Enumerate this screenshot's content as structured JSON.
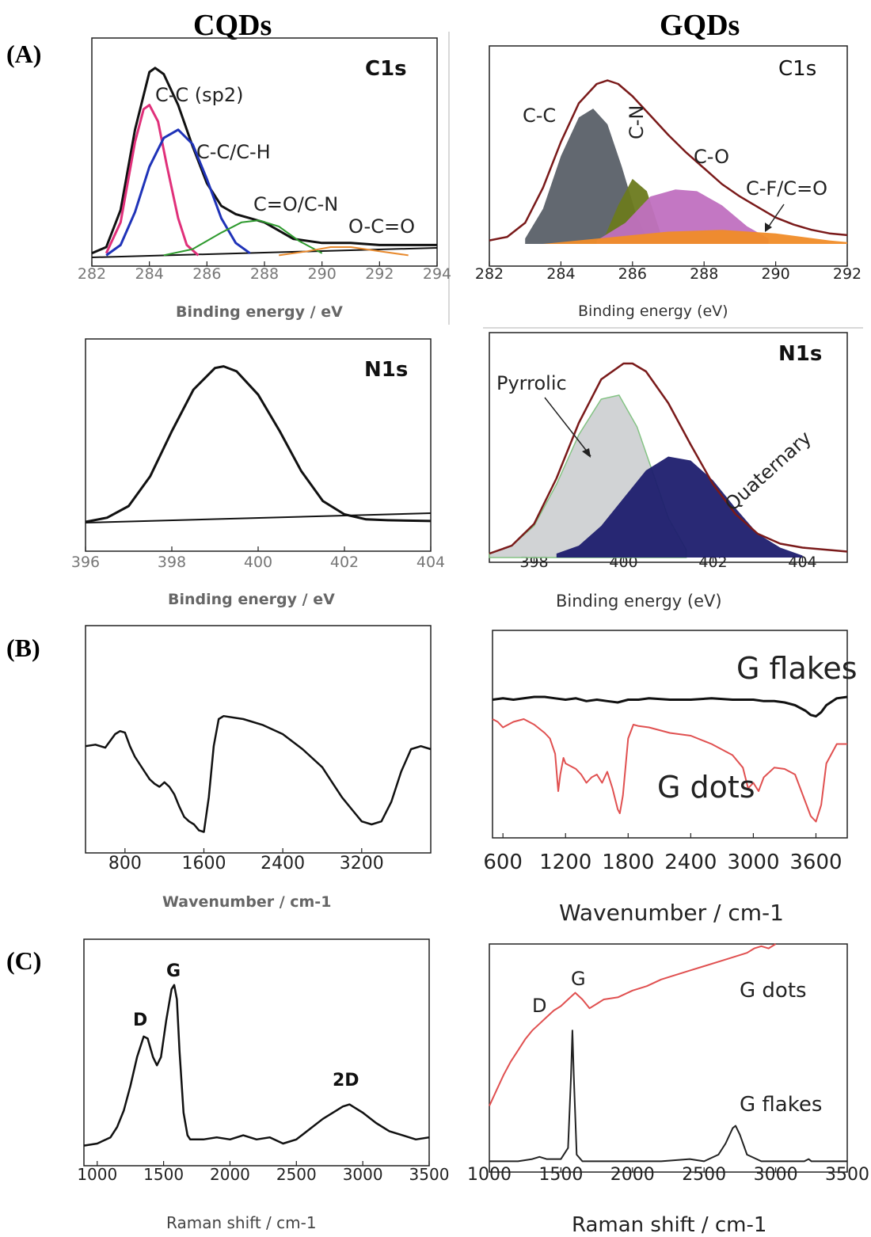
{
  "columns": {
    "left": "CQDs",
    "right": "GQDs"
  },
  "sections": {
    "a": "(A)",
    "b": "(B)",
    "c": "(C)"
  },
  "colors": {
    "black": "#111111",
    "magenta": "#e0307a",
    "blue": "#1f33b8",
    "green": "#2e9a2e",
    "orange": "#e88a2e",
    "darkred": "#7a1a1a",
    "gray_fill": "#5a6068",
    "olive_fill": "#6b7a1e",
    "pink_fill": "#c070c0",
    "orange_fill": "#f08c28",
    "light_fill": "#cfd1d3",
    "navy_fill": "#1e1e6e",
    "red_line": "#e05050"
  },
  "chart_data": [
    {
      "id": "cqd_c1s",
      "type": "line",
      "title": "C1s",
      "xlabel": "Binding energy / eV",
      "xlim": [
        282,
        294
      ],
      "ylim": [
        0,
        1
      ],
      "xticks": [
        282,
        284,
        286,
        288,
        290,
        292,
        294
      ],
      "annotations": [
        "C-C (sp2)",
        "C-C/C-H",
        "C=O/C-N",
        "O-C=O"
      ],
      "series": [
        {
          "name": "envelope",
          "x": [
            282.0,
            282.5,
            283.0,
            283.5,
            284.0,
            284.2,
            284.5,
            285.0,
            285.5,
            286.0,
            286.5,
            287.0,
            287.5,
            288.0,
            288.5,
            289.0,
            290.0,
            291.0,
            292.0,
            293.0,
            294.0
          ],
          "y": [
            0.02,
            0.05,
            0.23,
            0.62,
            0.9,
            0.92,
            0.89,
            0.74,
            0.54,
            0.36,
            0.25,
            0.21,
            0.19,
            0.17,
            0.13,
            0.09,
            0.07,
            0.07,
            0.06,
            0.06,
            0.06
          ]
        },
        {
          "name": "C-C (sp2)",
          "x": [
            282.5,
            283.0,
            283.5,
            283.8,
            284.0,
            284.3,
            284.6,
            285.0,
            285.3,
            285.7
          ],
          "y": [
            0.02,
            0.17,
            0.56,
            0.72,
            0.74,
            0.66,
            0.45,
            0.19,
            0.06,
            0.01
          ]
        },
        {
          "name": "C-C/C-H",
          "x": [
            282.5,
            283.0,
            283.5,
            284.0,
            284.5,
            285.0,
            285.5,
            286.0,
            286.5,
            287.0,
            287.5
          ],
          "y": [
            0.01,
            0.06,
            0.22,
            0.44,
            0.58,
            0.62,
            0.55,
            0.38,
            0.19,
            0.07,
            0.02
          ]
        },
        {
          "name": "C=O/C-N",
          "x": [
            284.5,
            285.5,
            286.5,
            287.2,
            287.8,
            288.5,
            289.2,
            290.0
          ],
          "y": [
            0.01,
            0.04,
            0.12,
            0.17,
            0.18,
            0.15,
            0.08,
            0.02
          ]
        },
        {
          "name": "O-C=O",
          "x": [
            288.5,
            289.5,
            290.3,
            291.0,
            292.0,
            293.0
          ],
          "y": [
            0.01,
            0.03,
            0.05,
            0.05,
            0.03,
            0.01
          ]
        }
      ]
    },
    {
      "id": "gqd_c1s",
      "type": "area",
      "title": "C1s",
      "xlabel": "Binding energy (eV)",
      "xlim": [
        282,
        292
      ],
      "ylim": [
        0,
        1
      ],
      "xticks": [
        282,
        284,
        286,
        288,
        290,
        292
      ],
      "annotations": [
        "C-C",
        "C-N",
        "C-O",
        "C-F/C=O"
      ],
      "series": [
        {
          "name": "envelope",
          "x": [
            282.0,
            282.5,
            283.0,
            283.5,
            284.0,
            284.5,
            285.0,
            285.3,
            285.6,
            286.0,
            286.5,
            287.0,
            287.5,
            288.0,
            288.5,
            289.0,
            289.5,
            290.0,
            290.5,
            291.0,
            291.5,
            292.0
          ],
          "y": [
            0.02,
            0.04,
            0.12,
            0.32,
            0.58,
            0.8,
            0.91,
            0.93,
            0.91,
            0.84,
            0.73,
            0.62,
            0.52,
            0.43,
            0.34,
            0.27,
            0.21,
            0.15,
            0.11,
            0.08,
            0.06,
            0.05
          ]
        },
        {
          "name": "C-C",
          "x": [
            283.0,
            283.5,
            284.0,
            284.5,
            284.9,
            285.3,
            285.7,
            286.1,
            286.4
          ],
          "y": [
            0.03,
            0.2,
            0.5,
            0.72,
            0.77,
            0.68,
            0.44,
            0.17,
            0.03
          ]
        },
        {
          "name": "C-N",
          "x": [
            285.2,
            285.6,
            286.0,
            286.4,
            286.8
          ],
          "y": [
            0.03,
            0.22,
            0.37,
            0.3,
            0.05
          ]
        },
        {
          "name": "C-O",
          "x": [
            285.0,
            285.8,
            286.5,
            287.2,
            287.8,
            288.5,
            289.2,
            289.8
          ],
          "y": [
            0.02,
            0.12,
            0.27,
            0.31,
            0.3,
            0.22,
            0.1,
            0.03
          ]
        },
        {
          "name": "C-F/C=O",
          "x": [
            283.5,
            285.5,
            287.0,
            288.5,
            290.0,
            291.5,
            292.0
          ],
          "y": [
            0.0,
            0.04,
            0.07,
            0.08,
            0.06,
            0.02,
            0.01
          ]
        }
      ]
    },
    {
      "id": "cqd_n1s",
      "type": "line",
      "title": "N1s",
      "xlabel": "Binding energy / eV",
      "xlim": [
        396,
        404
      ],
      "ylim": [
        0,
        1
      ],
      "xticks": [
        396,
        398,
        400,
        402,
        404
      ],
      "series": [
        {
          "name": "fit",
          "x": [
            396.0,
            396.5,
            397.0,
            397.5,
            398.0,
            398.5,
            399.0,
            399.2,
            399.5,
            400.0,
            400.5,
            401.0,
            401.5,
            402.0,
            402.5,
            403.0,
            404.0
          ],
          "y": [
            0.005,
            0.03,
            0.1,
            0.28,
            0.55,
            0.8,
            0.93,
            0.94,
            0.91,
            0.77,
            0.55,
            0.31,
            0.13,
            0.05,
            0.02,
            0.015,
            0.01
          ]
        }
      ]
    },
    {
      "id": "gqd_n1s",
      "type": "area",
      "title": "N1s",
      "xlabel": "Binding energy (eV)",
      "xlim": [
        397,
        405
      ],
      "ylim": [
        0,
        1
      ],
      "xticks": [
        398,
        400,
        402,
        404
      ],
      "annotations": [
        "Pyrrolic",
        "Quaternary"
      ],
      "series": [
        {
          "name": "envelope",
          "x": [
            397.0,
            397.5,
            398.0,
            398.5,
            399.0,
            399.5,
            400.0,
            400.2,
            400.5,
            401.0,
            401.5,
            402.0,
            402.5,
            403.0,
            403.5,
            404.0,
            404.5,
            405.0
          ],
          "y": [
            0.02,
            0.06,
            0.17,
            0.4,
            0.68,
            0.9,
            0.98,
            0.98,
            0.94,
            0.78,
            0.57,
            0.37,
            0.22,
            0.12,
            0.07,
            0.05,
            0.04,
            0.03
          ]
        },
        {
          "name": "Pyrrolic",
          "x": [
            397.0,
            397.5,
            398.0,
            398.5,
            399.0,
            399.5,
            399.9,
            400.3,
            400.7,
            401.0,
            401.4
          ],
          "y": [
            0.02,
            0.06,
            0.16,
            0.37,
            0.62,
            0.8,
            0.82,
            0.66,
            0.4,
            0.2,
            0.04
          ]
        },
        {
          "name": "Quaternary",
          "x": [
            398.5,
            399.0,
            399.5,
            400.0,
            400.5,
            401.0,
            401.5,
            402.0,
            402.5,
            403.0,
            403.5,
            404.0
          ],
          "y": [
            0.02,
            0.06,
            0.16,
            0.3,
            0.44,
            0.51,
            0.49,
            0.39,
            0.25,
            0.12,
            0.05,
            0.01
          ]
        }
      ]
    },
    {
      "id": "cqd_ftir",
      "type": "line",
      "xlabel": "Wavenumber / cm-1",
      "xlim": [
        400,
        3900
      ],
      "ylim": [
        0,
        1
      ],
      "xticks": [
        800,
        1600,
        2400,
        3200
      ],
      "series": [
        {
          "name": "FTIR",
          "x": [
            400,
            500,
            600,
            700,
            750,
            800,
            850,
            900,
            950,
            1000,
            1050,
            1100,
            1150,
            1200,
            1250,
            1300,
            1350,
            1400,
            1450,
            1500,
            1550,
            1600,
            1650,
            1700,
            1750,
            1800,
            2000,
            2200,
            2400,
            2600,
            2800,
            2900,
            3000,
            3100,
            3200,
            3300,
            3400,
            3500,
            3600,
            3700,
            3800,
            3900
          ],
          "y": [
            0.62,
            0.63,
            0.61,
            0.7,
            0.72,
            0.71,
            0.62,
            0.55,
            0.5,
            0.45,
            0.4,
            0.37,
            0.35,
            0.38,
            0.35,
            0.3,
            0.22,
            0.15,
            0.12,
            0.1,
            0.06,
            0.05,
            0.28,
            0.62,
            0.8,
            0.82,
            0.8,
            0.76,
            0.7,
            0.6,
            0.48,
            0.38,
            0.28,
            0.2,
            0.12,
            0.1,
            0.12,
            0.25,
            0.45,
            0.6,
            0.62,
            0.6
          ]
        }
      ]
    },
    {
      "id": "gqd_ftir",
      "type": "line",
      "xlabel": "Wavenumber / cm-1",
      "xlim": [
        500,
        3900
      ],
      "ylim": [
        0,
        1
      ],
      "xticks": [
        600,
        1200,
        1800,
        2400,
        3000,
        3600
      ],
      "annotations": [
        "G flakes",
        "G dots"
      ],
      "series": [
        {
          "name": "G flakes",
          "x": [
            500,
            600,
            700,
            800,
            900,
            1000,
            1100,
            1200,
            1300,
            1400,
            1500,
            1600,
            1700,
            1800,
            1900,
            2000,
            2200,
            2400,
            2600,
            2800,
            3000,
            3100,
            3200,
            3300,
            3400,
            3500,
            3550,
            3600,
            3650,
            3700,
            3800,
            3900
          ],
          "y": [
            0.94,
            0.95,
            0.94,
            0.95,
            0.96,
            0.96,
            0.95,
            0.94,
            0.95,
            0.93,
            0.94,
            0.93,
            0.92,
            0.94,
            0.94,
            0.95,
            0.94,
            0.94,
            0.95,
            0.94,
            0.94,
            0.93,
            0.93,
            0.92,
            0.9,
            0.86,
            0.83,
            0.82,
            0.85,
            0.9,
            0.95,
            0.96
          ]
        },
        {
          "name": "G dots",
          "x": [
            500,
            550,
            600,
            650,
            700,
            800,
            900,
            1000,
            1050,
            1100,
            1130,
            1150,
            1180,
            1200,
            1250,
            1300,
            1350,
            1400,
            1450,
            1500,
            1550,
            1600,
            1650,
            1700,
            1720,
            1750,
            1800,
            1850,
            1900,
            2000,
            2200,
            2400,
            2600,
            2800,
            2900,
            2950,
            3000,
            3050,
            3100,
            3200,
            3300,
            3400,
            3500,
            3550,
            3600,
            3650,
            3700,
            3800,
            3900
          ],
          "y": [
            0.8,
            0.78,
            0.74,
            0.76,
            0.78,
            0.8,
            0.76,
            0.7,
            0.66,
            0.55,
            0.28,
            0.4,
            0.52,
            0.48,
            0.46,
            0.44,
            0.4,
            0.34,
            0.38,
            0.4,
            0.34,
            0.42,
            0.3,
            0.15,
            0.12,
            0.25,
            0.66,
            0.76,
            0.75,
            0.74,
            0.7,
            0.68,
            0.62,
            0.54,
            0.45,
            0.3,
            0.34,
            0.28,
            0.38,
            0.45,
            0.44,
            0.4,
            0.2,
            0.1,
            0.06,
            0.18,
            0.48,
            0.62,
            0.62
          ]
        }
      ]
    },
    {
      "id": "cqd_raman",
      "type": "line",
      "xlabel": "Raman shift / cm-1",
      "xlim": [
        900,
        3500
      ],
      "ylim": [
        0,
        1
      ],
      "xticks": [
        1000,
        1500,
        2000,
        2500,
        3000,
        3500
      ],
      "annotations": [
        "D",
        "G",
        "2D"
      ],
      "series": [
        {
          "name": "Raman",
          "x": [
            900,
            1000,
            1100,
            1150,
            1200,
            1250,
            1300,
            1350,
            1380,
            1420,
            1450,
            1480,
            1520,
            1560,
            1580,
            1600,
            1620,
            1650,
            1680,
            1700,
            1800,
            1900,
            2000,
            2100,
            2200,
            2300,
            2400,
            2500,
            2600,
            2700,
            2800,
            2850,
            2900,
            2950,
            3000,
            3100,
            3200,
            3300,
            3400,
            3500
          ],
          "y": [
            0.09,
            0.1,
            0.13,
            0.18,
            0.26,
            0.38,
            0.52,
            0.62,
            0.61,
            0.52,
            0.48,
            0.52,
            0.7,
            0.85,
            0.87,
            0.8,
            0.55,
            0.25,
            0.14,
            0.12,
            0.12,
            0.13,
            0.12,
            0.14,
            0.12,
            0.13,
            0.1,
            0.12,
            0.17,
            0.22,
            0.26,
            0.28,
            0.29,
            0.27,
            0.25,
            0.2,
            0.16,
            0.14,
            0.12,
            0.13
          ]
        }
      ]
    },
    {
      "id": "gqd_raman",
      "type": "line",
      "xlabel": "Raman shift / cm-1",
      "xlim": [
        1000,
        3500
      ],
      "ylim": [
        0,
        1
      ],
      "xticks": [
        1000,
        1500,
        2000,
        2500,
        3000,
        3500
      ],
      "annotations": [
        "D",
        "G"
      ],
      "series": [
        {
          "name": "G dots",
          "x": [
            1000,
            1050,
            1100,
            1150,
            1200,
            1250,
            1300,
            1350,
            1400,
            1450,
            1500,
            1550,
            1600,
            1650,
            1700,
            1750,
            1800,
            1900,
            2000,
            2100,
            2200,
            2300,
            2400,
            2500,
            2600,
            2700,
            2800,
            2850,
            2900,
            2950,
            3000
          ],
          "y": [
            0.27,
            0.34,
            0.41,
            0.47,
            0.52,
            0.57,
            0.61,
            0.64,
            0.67,
            0.7,
            0.72,
            0.75,
            0.78,
            0.75,
            0.71,
            0.73,
            0.75,
            0.76,
            0.79,
            0.81,
            0.84,
            0.86,
            0.88,
            0.9,
            0.92,
            0.94,
            0.96,
            0.98,
            0.99,
            0.98,
            1.0
          ]
        },
        {
          "name": "G flakes",
          "x": [
            1000,
            1200,
            1300,
            1350,
            1400,
            1500,
            1550,
            1570,
            1580,
            1590,
            1610,
            1650,
            1800,
            2000,
            2200,
            2400,
            2500,
            2600,
            2650,
            2700,
            2720,
            2750,
            2800,
            2900,
            3000,
            3200,
            3230,
            3250,
            3300,
            3500
          ],
          "y": [
            0.02,
            0.02,
            0.03,
            0.04,
            0.03,
            0.03,
            0.08,
            0.4,
            0.61,
            0.4,
            0.05,
            0.02,
            0.02,
            0.02,
            0.02,
            0.03,
            0.02,
            0.05,
            0.1,
            0.17,
            0.18,
            0.14,
            0.05,
            0.02,
            0.02,
            0.02,
            0.03,
            0.02,
            0.02,
            0.02
          ]
        }
      ]
    }
  ]
}
